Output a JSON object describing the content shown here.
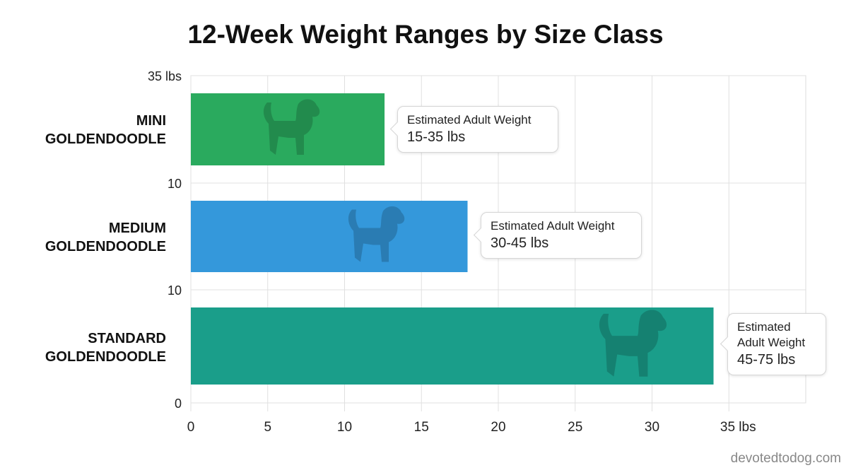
{
  "chart_data": {
    "type": "bar",
    "orientation": "horizontal",
    "title": "12-Week Weight Ranges by Size Class",
    "categories": [
      "MINI GOLDENDOODLE",
      "MEDIUM GOLDENDOODLE",
      "STANDARD GOLDENDOODLE"
    ],
    "category_lines": [
      [
        "MINI",
        "GOLDENDOODLE"
      ],
      [
        "MEDIUM",
        "GOLDENDOODLE"
      ],
      [
        "STANDARD",
        "GOLDENDOODLE"
      ]
    ],
    "values": [
      12.6,
      18,
      34
    ],
    "colors": [
      "#2aaa5e",
      "#3498db",
      "#1a9e8a"
    ],
    "xlim": [
      0,
      40
    ],
    "x_ticks": [
      "0",
      "5",
      "10",
      "15",
      "20",
      "25",
      "30",
      "35 lbs"
    ],
    "y_tick_labels": [
      "35 lbs",
      "10",
      "10",
      "0"
    ],
    "grid": true,
    "callouts": [
      {
        "label": "Estimated Adult Weight",
        "value": "15-35 lbs"
      },
      {
        "label": "Estimated Adult Weight",
        "value": "30-45 lbs"
      },
      {
        "label": "Estimated Adult Weight",
        "value": "45-75 lbs"
      }
    ],
    "icon": "dog-silhouette-icon"
  },
  "watermark": "devotedtodog.com"
}
